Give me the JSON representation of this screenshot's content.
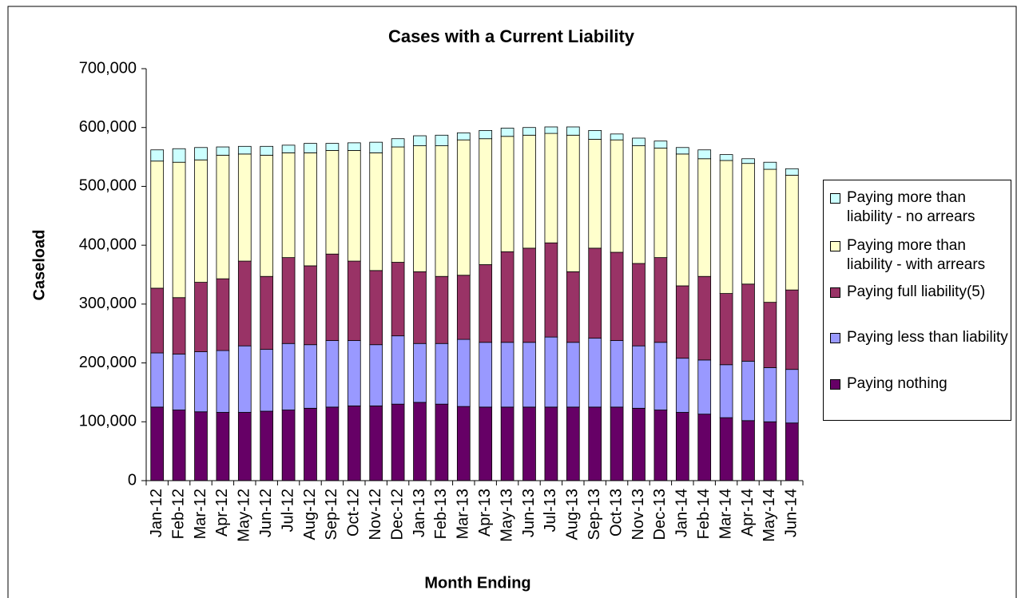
{
  "chart_data": {
    "type": "stacked_bar",
    "title": "Cases with a Current Liability",
    "x_label": "Month Ending",
    "y_label": "Caseload",
    "categories": [
      "Jan-12",
      "Feb-12",
      "Mar-12",
      "Apr-12",
      "May-12",
      "Jun-12",
      "Jul-12",
      "Aug-12",
      "Sep-12",
      "Oct-12",
      "Nov-12",
      "Dec-12",
      "Jan-13",
      "Feb-13",
      "Mar-13",
      "Apr-13",
      "May-13",
      "Jun-13",
      "Jul-13",
      "Aug-13",
      "Sep-13",
      "Oct-13",
      "Nov-13",
      "Dec-13",
      "Jan-14",
      "Feb-14",
      "Mar-14",
      "Apr-14",
      "May-14",
      "Jun-14"
    ],
    "series": [
      {
        "name": "Paying nothing",
        "color": "#660066",
        "values": [
          125000,
          120000,
          117000,
          116000,
          116000,
          118000,
          120000,
          123000,
          125000,
          127000,
          127000,
          130000,
          133000,
          130000,
          126000,
          125000,
          125000,
          125000,
          125000,
          125000,
          125000,
          125000,
          123000,
          120000,
          116000,
          113000,
          107000,
          102000,
          100000,
          98000
        ]
      },
      {
        "name": "Paying less than liability",
        "color": "#9999ff",
        "values": [
          92000,
          95000,
          102000,
          105000,
          113000,
          105000,
          113000,
          108000,
          113000,
          111000,
          104000,
          116000,
          100000,
          103000,
          114000,
          110000,
          110000,
          110000,
          119000,
          110000,
          117000,
          113000,
          106000,
          115000,
          92000,
          92000,
          90000,
          101000,
          92000,
          91000
        ]
      },
      {
        "name": "Paying full liability(5)",
        "color": "#993366",
        "values": [
          110000,
          96000,
          118000,
          122000,
          144000,
          124000,
          146000,
          134000,
          147000,
          135000,
          126000,
          125000,
          122000,
          114000,
          109000,
          132000,
          154000,
          160000,
          160000,
          120000,
          153000,
          150000,
          140000,
          144000,
          123000,
          142000,
          121000,
          131000,
          111000,
          135000
        ]
      },
      {
        "name": "Paying more than liability - with arrears",
        "color": "#ffffcc",
        "values": [
          216000,
          230000,
          208000,
          210000,
          182000,
          206000,
          178000,
          192000,
          176000,
          188000,
          200000,
          196000,
          214000,
          222000,
          230000,
          214000,
          196000,
          192000,
          186000,
          232000,
          185000,
          191000,
          200000,
          186000,
          224000,
          200000,
          226000,
          205000,
          226000,
          195000
        ]
      },
      {
        "name": "Paying more than liability - no arrears",
        "color": "#ccffff",
        "values": [
          19000,
          23000,
          21000,
          14000,
          13000,
          15000,
          13000,
          16000,
          12000,
          13000,
          18000,
          14000,
          17000,
          18000,
          12000,
          14000,
          14000,
          13000,
          11000,
          14000,
          15000,
          10000,
          13000,
          12000,
          11000,
          15000,
          10000,
          8000,
          12000,
          11000
        ]
      }
    ],
    "ylim": [
      0,
      700000
    ],
    "yticks": [
      0,
      {
        "value": 100000,
        "label": "100,000"
      },
      {
        "value": 200000,
        "label": "200,000"
      },
      {
        "value": 300000,
        "label": "300,000"
      },
      {
        "value": 400000,
        "label": "400,000"
      },
      {
        "value": 500000,
        "label": "500,000"
      },
      {
        "value": 600000,
        "label": "600,000"
      },
      {
        "value": 700000,
        "label": "700,000"
      }
    ],
    "grid": false,
    "legend": "right"
  }
}
